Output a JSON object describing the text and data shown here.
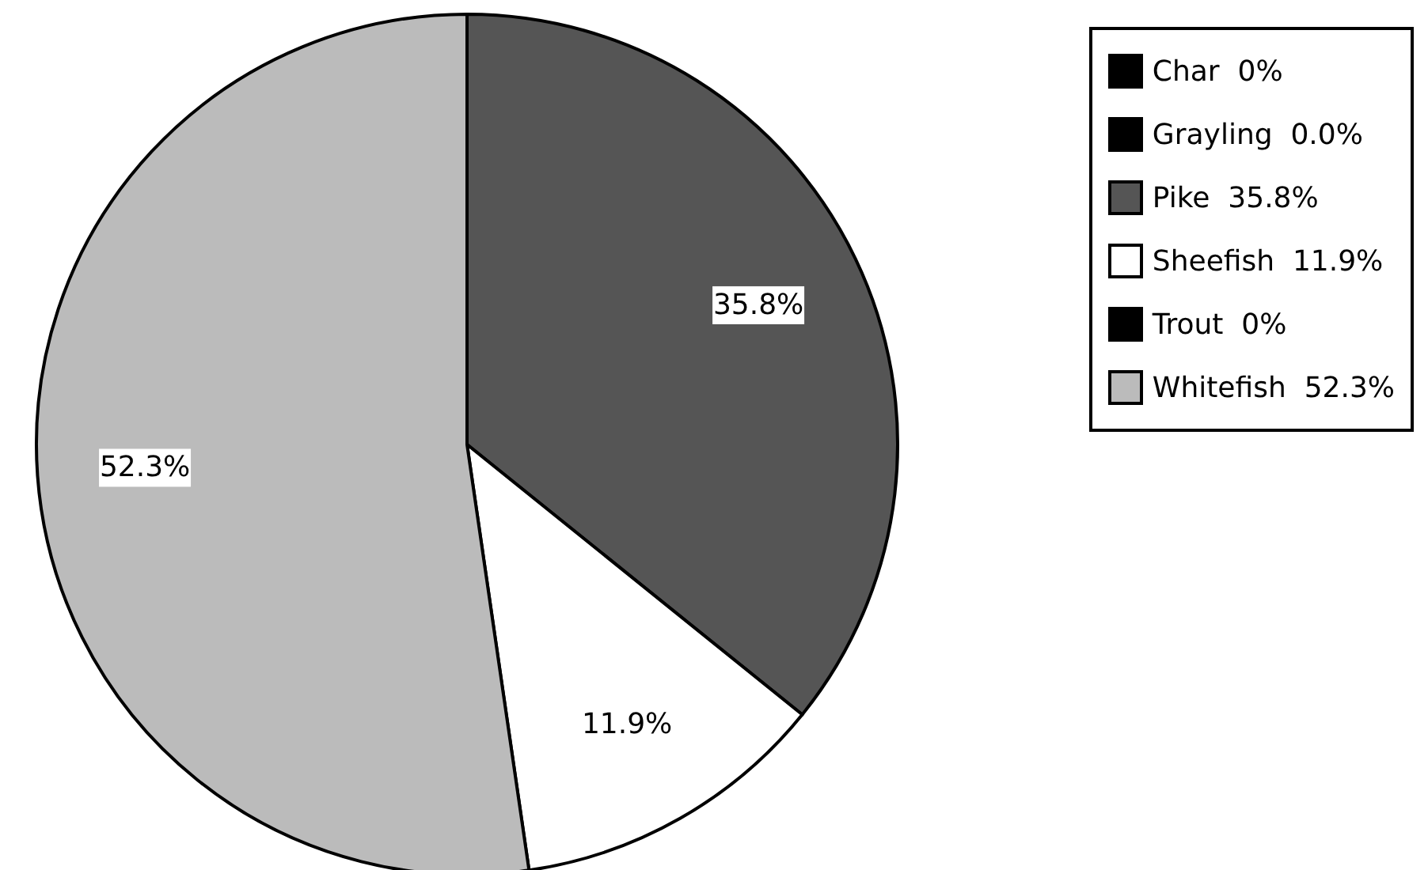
{
  "chart_data": {
    "type": "pie",
    "categories": [
      "Char",
      "Grayling",
      "Pike",
      "Sheefish",
      "Trout",
      "Whitefish"
    ],
    "values": [
      0,
      0,
      35.8,
      11.9,
      0,
      52.3
    ],
    "value_labels": [
      "0%",
      "0.0%",
      "35.8%",
      "11.9%",
      "0%",
      "52.3%"
    ],
    "colors": [
      "#000000",
      "#000000",
      "#555555",
      "#ffffff",
      "#000000",
      "#bbbbbb"
    ],
    "legend": "top right"
  }
}
